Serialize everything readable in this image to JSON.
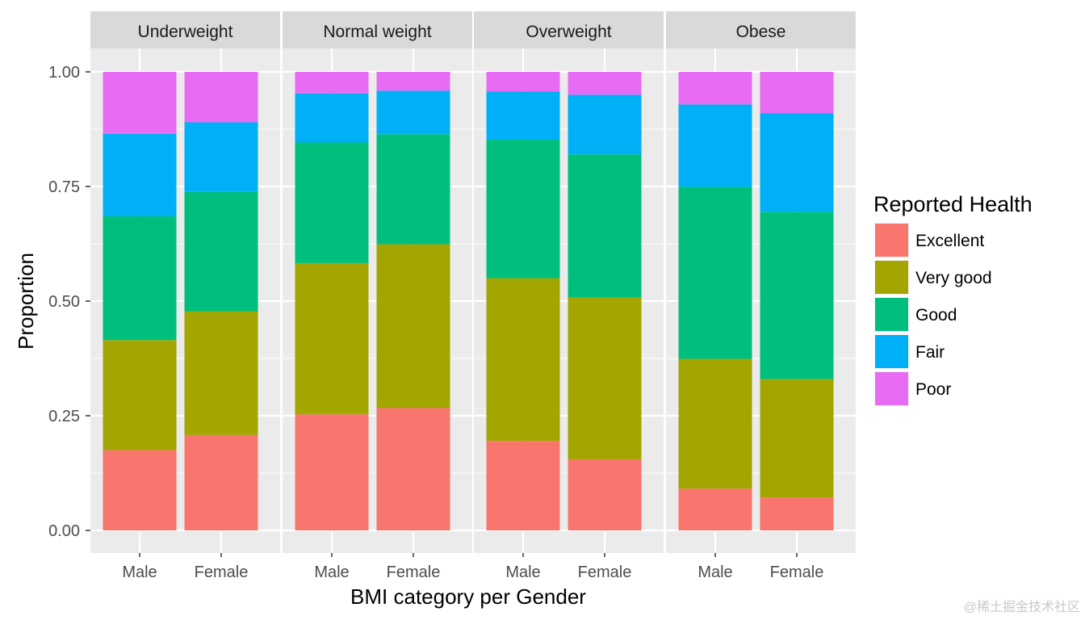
{
  "chart_data": {
    "type": "bar",
    "stacked": true,
    "facets": [
      "Underweight",
      "Normal weight",
      "Overweight",
      "Obese"
    ],
    "categories": [
      "Male",
      "Female"
    ],
    "xlabel": "BMI category per Gender",
    "ylabel": "Proportion",
    "ylim": [
      0,
      1
    ],
    "yticks": [
      0,
      0.25,
      0.5,
      0.75,
      1.0
    ],
    "ytick_labels": [
      "0.00",
      "0.25",
      "0.50",
      "0.75",
      "1.00"
    ],
    "legend": {
      "title": "Reported Health",
      "position": "right"
    },
    "series": [
      {
        "name": "Excellent",
        "color": "#F8766D",
        "values": [
          [
            0.175,
            0.208
          ],
          [
            0.253,
            0.267
          ],
          [
            0.195,
            0.155
          ],
          [
            0.091,
            0.072
          ]
        ]
      },
      {
        "name": "Very good",
        "color": "#A3A500",
        "values": [
          [
            0.24,
            0.27
          ],
          [
            0.33,
            0.357
          ],
          [
            0.355,
            0.353
          ],
          [
            0.283,
            0.258
          ]
        ]
      },
      {
        "name": "Good",
        "color": "#00BF7D",
        "values": [
          [
            0.27,
            0.26
          ],
          [
            0.263,
            0.24
          ],
          [
            0.302,
            0.312
          ],
          [
            0.375,
            0.365
          ]
        ]
      },
      {
        "name": "Fair",
        "color": "#00B0F6",
        "values": [
          [
            0.18,
            0.152
          ],
          [
            0.107,
            0.095
          ],
          [
            0.105,
            0.13
          ],
          [
            0.18,
            0.215
          ]
        ]
      },
      {
        "name": "Poor",
        "color": "#E76BF3",
        "values": [
          [
            0.135,
            0.11
          ],
          [
            0.047,
            0.041
          ],
          [
            0.043,
            0.05
          ],
          [
            0.071,
            0.09
          ]
        ]
      }
    ]
  },
  "watermark": "@稀土掘金技术社区"
}
